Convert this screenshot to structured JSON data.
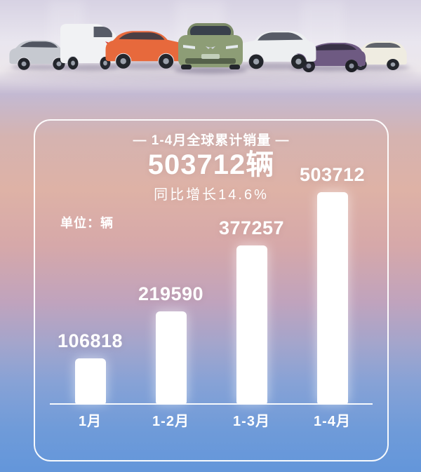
{
  "header": {
    "title": "— 1-4月全球累计销量 —",
    "total": "503712辆",
    "growth": "同比增长14.6%"
  },
  "unit_label": "单位：辆",
  "chart_data": {
    "type": "bar",
    "title": "1-4月全球累计销量",
    "total_label": "503712辆",
    "growth_note": "同比增长14.6%",
    "unit": "辆",
    "categories": [
      "1月",
      "1-2月",
      "1-3月",
      "1-4月"
    ],
    "values": [
      106818,
      219590,
      377257,
      503712
    ],
    "ylim": [
      0,
      503712
    ],
    "grid": false,
    "legend": false,
    "bar_color": "#ffffff",
    "label_color": "#ffffff"
  },
  "hero": {
    "cars": [
      {
        "name": "silver-suv",
        "color": "#c6c9d0"
      },
      {
        "name": "white-van",
        "color": "#f1f2f4"
      },
      {
        "name": "orange-suv",
        "color": "#e7693c"
      },
      {
        "name": "green-hatchback",
        "color": "#8d9d76"
      },
      {
        "name": "white-suv",
        "color": "#edeff1"
      },
      {
        "name": "purple-sedan",
        "color": "#6e5a82"
      },
      {
        "name": "cream-minicar",
        "color": "#efece1"
      }
    ]
  },
  "colors": {
    "text": "#ffffff",
    "panel_border": "#ffffff",
    "bg_top": "#e9e6ef",
    "bg_pink": "#deb2a6",
    "bg_bottom": "#6396da"
  }
}
